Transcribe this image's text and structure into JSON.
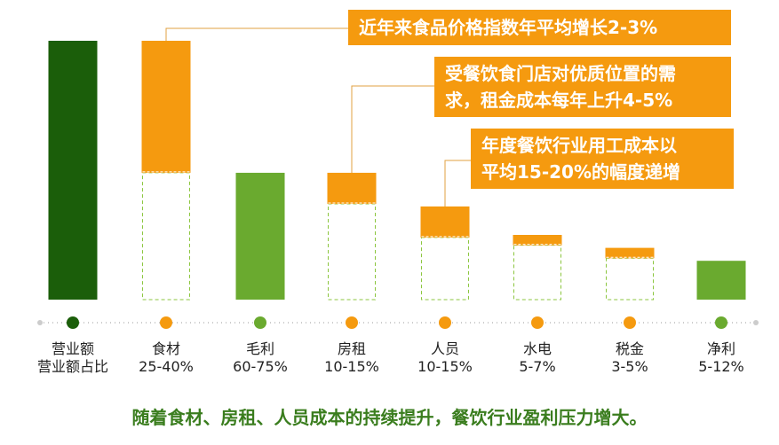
{
  "colors": {
    "dark_green": "#1b5e0a",
    "green": "#6aaa2f",
    "orange": "#f59a0f",
    "callout_text": "#ffffff",
    "footnote": "#3a7d1e",
    "dotted_line": "#cccccc"
  },
  "chart_data": {
    "type": "bar",
    "subtype": "waterfall",
    "categories": [
      "营业额",
      "食材",
      "毛利",
      "房租",
      "人员",
      "水电",
      "税金",
      "净利"
    ],
    "ratio_labels": [
      "营业额占比",
      "25-40%",
      "60-75%",
      "10-15%",
      "10-15%",
      "5-7%",
      "3-5%",
      "5-12%"
    ],
    "scale_max": 100,
    "bars": [
      {
        "name": "营业额",
        "kind": "total",
        "base": 0,
        "solid": 100,
        "dashed": 0,
        "color": "dark_green"
      },
      {
        "name": "食材",
        "kind": "cost",
        "base": 0,
        "solid": 51,
        "dashed": 49,
        "color": "orange"
      },
      {
        "name": "毛利",
        "kind": "total",
        "base": 0,
        "solid": 49,
        "dashed": 0,
        "color": "green"
      },
      {
        "name": "房租",
        "kind": "cost",
        "base": 37,
        "solid": 12,
        "dashed": 0,
        "color": "orange"
      },
      {
        "name": "人员",
        "kind": "cost",
        "base": 24,
        "solid": 12,
        "dashed": 0,
        "color": "orange"
      },
      {
        "name": "水电",
        "kind": "cost",
        "base": 21,
        "solid": 4,
        "dashed": 0,
        "color": "orange"
      },
      {
        "name": "税金",
        "kind": "cost",
        "base": 16,
        "solid": 4,
        "dashed": 0,
        "color": "orange"
      },
      {
        "name": "净利",
        "kind": "total",
        "base": 0,
        "solid": 15,
        "dashed": 0,
        "color": "green"
      }
    ],
    "markers": [
      "dark_green",
      "orange",
      "green",
      "orange",
      "orange",
      "orange",
      "orange",
      "green"
    ],
    "annotations": [
      "近年来食品价格指数年平均增长2-3%",
      "受餐饮食门店对优质位置的需求，租金成本每年上升4-5%",
      "年度餐饮行业用工成本以平均15-20%的幅度递增"
    ],
    "grid": false,
    "legend": "none"
  },
  "callouts": [
    {
      "lines": [
        "近年来食品价格指数年平均增长2-3%"
      ]
    },
    {
      "lines": [
        "受餐饮食门店对优质位置的需",
        "求，租金成本每年上升4-5%"
      ]
    },
    {
      "lines": [
        "年度餐饮行业用工成本以",
        "平均15-20%的幅度递增"
      ]
    }
  ],
  "footnote": "随着食材、房租、人员成本的持续提升，餐饮行业盈利压力增大。"
}
